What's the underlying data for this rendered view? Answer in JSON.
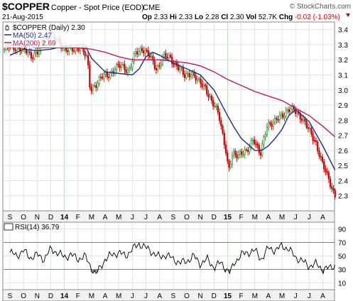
{
  "header": {
    "symbol": "$COPPER",
    "name": "Copper - Spot Price (EOD)",
    "exchange": "CME",
    "watermark": "© StockCharts.com",
    "date": "21-Aug-2015",
    "stats": [
      {
        "label": "Op",
        "value": "2.33"
      },
      {
        "label": "Hi",
        "value": "2.33"
      },
      {
        "label": "Lo",
        "value": "2.28"
      },
      {
        "label": "Cl",
        "value": "2.30"
      },
      {
        "label": "Vol",
        "value": "52.7K"
      },
      {
        "label": "Chg",
        "value": "-0.02 (-1.03%)",
        "color": "#cc0000",
        "arrow": "down"
      }
    ]
  },
  "legend": [
    {
      "text": "$COPPER (Daily) 2.30",
      "color": "#000000",
      "swatch": "candle"
    },
    {
      "text": "MA(50) 2.47",
      "color": "#1f2d8f",
      "swatch": "line"
    },
    {
      "text": "MA(200) 2.69",
      "color": "#c2185b",
      "swatch": "line"
    }
  ],
  "rsi_legend": {
    "text": "RSI(14) 36.79"
  },
  "x_labels": [
    "S",
    "O",
    "N",
    "D",
    "14",
    "F",
    "M",
    "A",
    "M",
    "J",
    "J",
    "A",
    "S",
    "O",
    "N",
    "D",
    "15",
    "F",
    "M",
    "A",
    "M",
    "J",
    "J",
    "A"
  ],
  "colors": {
    "up": "#2e8b2e",
    "down": "#cc0000",
    "ma50": "#1f2d8f",
    "ma200": "#c2185b",
    "grid": "#e3e3e3",
    "year_line": "#c6e2c6",
    "rsi_line": "#000000",
    "rsi_fill": "#888888"
  },
  "chart_data": [
    {
      "type": "line",
      "title": "$COPPER Copper - Spot Price (EOD) CME",
      "ylim": [
        2.2,
        3.45
      ],
      "y_ticks": [
        2.3,
        2.4,
        2.5,
        2.6,
        2.7,
        2.8,
        2.9,
        3.0,
        3.1,
        3.2,
        3.3,
        3.4
      ],
      "x_categories": [
        "S",
        "O",
        "N",
        "D",
        "14",
        "F",
        "M",
        "A",
        "M",
        "J",
        "J",
        "A",
        "S",
        "O",
        "N",
        "D",
        "15",
        "F",
        "M",
        "A",
        "M",
        "J",
        "J",
        "A"
      ],
      "year_markers": [
        "14",
        "15"
      ],
      "series": [
        {
          "name": "$COPPER (Daily)",
          "x": [
            0,
            0.5,
            1,
            1.5,
            2,
            2.5,
            3,
            3.5,
            4,
            4.5,
            5,
            5.5,
            6,
            6.2,
            6.5,
            7,
            7.5,
            8,
            8.5,
            9,
            9.5,
            10,
            10.5,
            11,
            11.5,
            12,
            12.5,
            13,
            13.5,
            14,
            14.5,
            15,
            15.5,
            16,
            16.2,
            16.5,
            17,
            17.5,
            18,
            18.5,
            19,
            19.5,
            20,
            20.5,
            21,
            21.5,
            22,
            22.5,
            23,
            23.5,
            23.9
          ],
          "values": [
            3.27,
            3.29,
            3.28,
            3.26,
            3.23,
            3.25,
            3.35,
            3.34,
            3.31,
            3.27,
            3.26,
            3.3,
            3.2,
            3.0,
            3.03,
            3.08,
            3.1,
            3.14,
            3.16,
            3.13,
            3.24,
            3.28,
            3.22,
            3.14,
            3.22,
            3.21,
            3.16,
            3.09,
            3.12,
            3.05,
            3.03,
            2.91,
            2.85,
            2.6,
            2.45,
            2.58,
            2.58,
            2.58,
            2.69,
            2.56,
            2.78,
            2.78,
            2.83,
            2.87,
            2.86,
            2.82,
            2.73,
            2.66,
            2.5,
            2.4,
            2.3
          ]
        },
        {
          "name": "MA(50)",
          "x": [
            0,
            1,
            2,
            3,
            4,
            5,
            5.5,
            6,
            7,
            8,
            9,
            9.5,
            10,
            10.5,
            11,
            12,
            13,
            14,
            15,
            16,
            16.5,
            17,
            18,
            18.5,
            19,
            19.5,
            20,
            20.5,
            21,
            22,
            23,
            23.9
          ],
          "values": [
            3.23,
            3.27,
            3.26,
            3.27,
            3.29,
            3.3,
            3.3,
            3.21,
            3.12,
            3.11,
            3.1,
            3.14,
            3.22,
            3.25,
            3.23,
            3.18,
            3.14,
            3.1,
            3.0,
            2.83,
            2.75,
            2.68,
            2.6,
            2.6,
            2.63,
            2.68,
            2.74,
            2.83,
            2.87,
            2.79,
            2.63,
            2.47
          ]
        },
        {
          "name": "MA(200)",
          "x": [
            0,
            1,
            2,
            3,
            4,
            5,
            6,
            7,
            8,
            9,
            10,
            11,
            12,
            13,
            14,
            15,
            16,
            17,
            18,
            19,
            20,
            21,
            22,
            23,
            23.9
          ],
          "values": [
            3.3,
            3.29,
            3.28,
            3.28,
            3.28,
            3.28,
            3.27,
            3.25,
            3.22,
            3.2,
            3.2,
            3.2,
            3.19,
            3.18,
            3.16,
            3.12,
            3.07,
            3.03,
            2.99,
            2.96,
            2.93,
            2.88,
            2.83,
            2.76,
            2.69
          ]
        }
      ]
    },
    {
      "type": "line",
      "title": "RSI(14) 36.79",
      "ylim": [
        0,
        100
      ],
      "y_ticks": [
        10,
        30,
        50,
        70,
        90
      ],
      "reference_lines": [
        30,
        70
      ],
      "x_categories": [
        "S",
        "O",
        "N",
        "D",
        "14",
        "F",
        "M",
        "A",
        "M",
        "J",
        "J",
        "A",
        "S",
        "O",
        "N",
        "D",
        "15",
        "F",
        "M",
        "A",
        "M",
        "J",
        "J",
        "A"
      ],
      "series": [
        {
          "name": "RSI(14)",
          "x": [
            0,
            0.5,
            1,
            1.5,
            2,
            2.5,
            3,
            3.5,
            4,
            4.5,
            5,
            5.5,
            6,
            6.3,
            6.7,
            7,
            7.5,
            8,
            8.5,
            9,
            9.5,
            10,
            10.5,
            11,
            11.5,
            12,
            12.5,
            13,
            13.5,
            14,
            14.5,
            15,
            15.5,
            16,
            16.2,
            16.5,
            17,
            17.5,
            18,
            18.5,
            19,
            19.5,
            20,
            20.5,
            21,
            21.5,
            22,
            22.5,
            23,
            23.5,
            23.9
          ],
          "values": [
            55,
            50,
            58,
            47,
            52,
            45,
            60,
            55,
            48,
            52,
            45,
            50,
            32,
            22,
            35,
            45,
            52,
            55,
            50,
            60,
            68,
            62,
            55,
            48,
            52,
            45,
            40,
            42,
            50,
            38,
            45,
            33,
            40,
            28,
            25,
            40,
            52,
            55,
            58,
            45,
            62,
            58,
            65,
            60,
            48,
            42,
            35,
            38,
            30,
            32,
            36.79
          ]
        }
      ]
    }
  ]
}
